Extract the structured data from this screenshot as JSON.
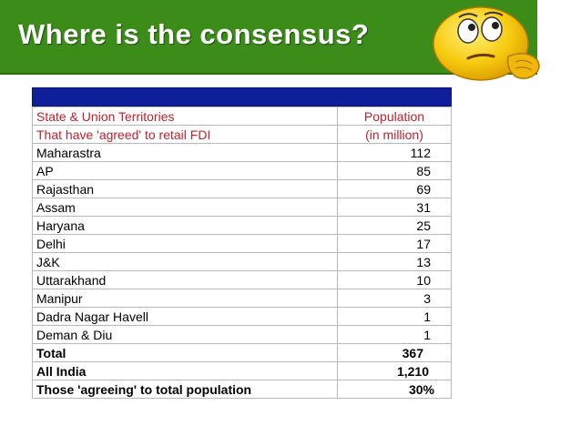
{
  "slide": {
    "title": "Where is the consensus?"
  },
  "table": {
    "header": {
      "col1_line1": "State & Union Territories",
      "col1_line2": "That have 'agreed' to retail FDI",
      "col2_line1": "Population",
      "col2_line2": "(in million)"
    },
    "rows": [
      {
        "name": "Maharastra",
        "value": "112"
      },
      {
        "name": "AP",
        "value": "85"
      },
      {
        "name": "Rajasthan",
        "value": "69"
      },
      {
        "name": "Assam",
        "value": "31"
      },
      {
        "name": "Haryana",
        "value": "25"
      },
      {
        "name": "Delhi",
        "value": "17"
      },
      {
        "name": "J&K",
        "value": "13"
      },
      {
        "name": "Uttarakhand",
        "value": "10"
      },
      {
        "name": "Manipur",
        "value": "3"
      },
      {
        "name": "Dadra Nagar Havell",
        "value": "1"
      },
      {
        "name": "Deman & Diu",
        "value": "1"
      }
    ],
    "summary": {
      "total_label": "Total",
      "total_value": "367",
      "all_india_label": "All India",
      "all_india_value": "1,210",
      "ratio_label": "Those 'agreeing' to total population",
      "ratio_value": "30%"
    }
  },
  "colors": {
    "banner": "#3c8c1a",
    "table_head_bar": "#0f1f99",
    "header_text": "#c0212c",
    "smiley": "#f7c90f"
  },
  "icons": {
    "smiley": "thinking-smiley-icon"
  }
}
